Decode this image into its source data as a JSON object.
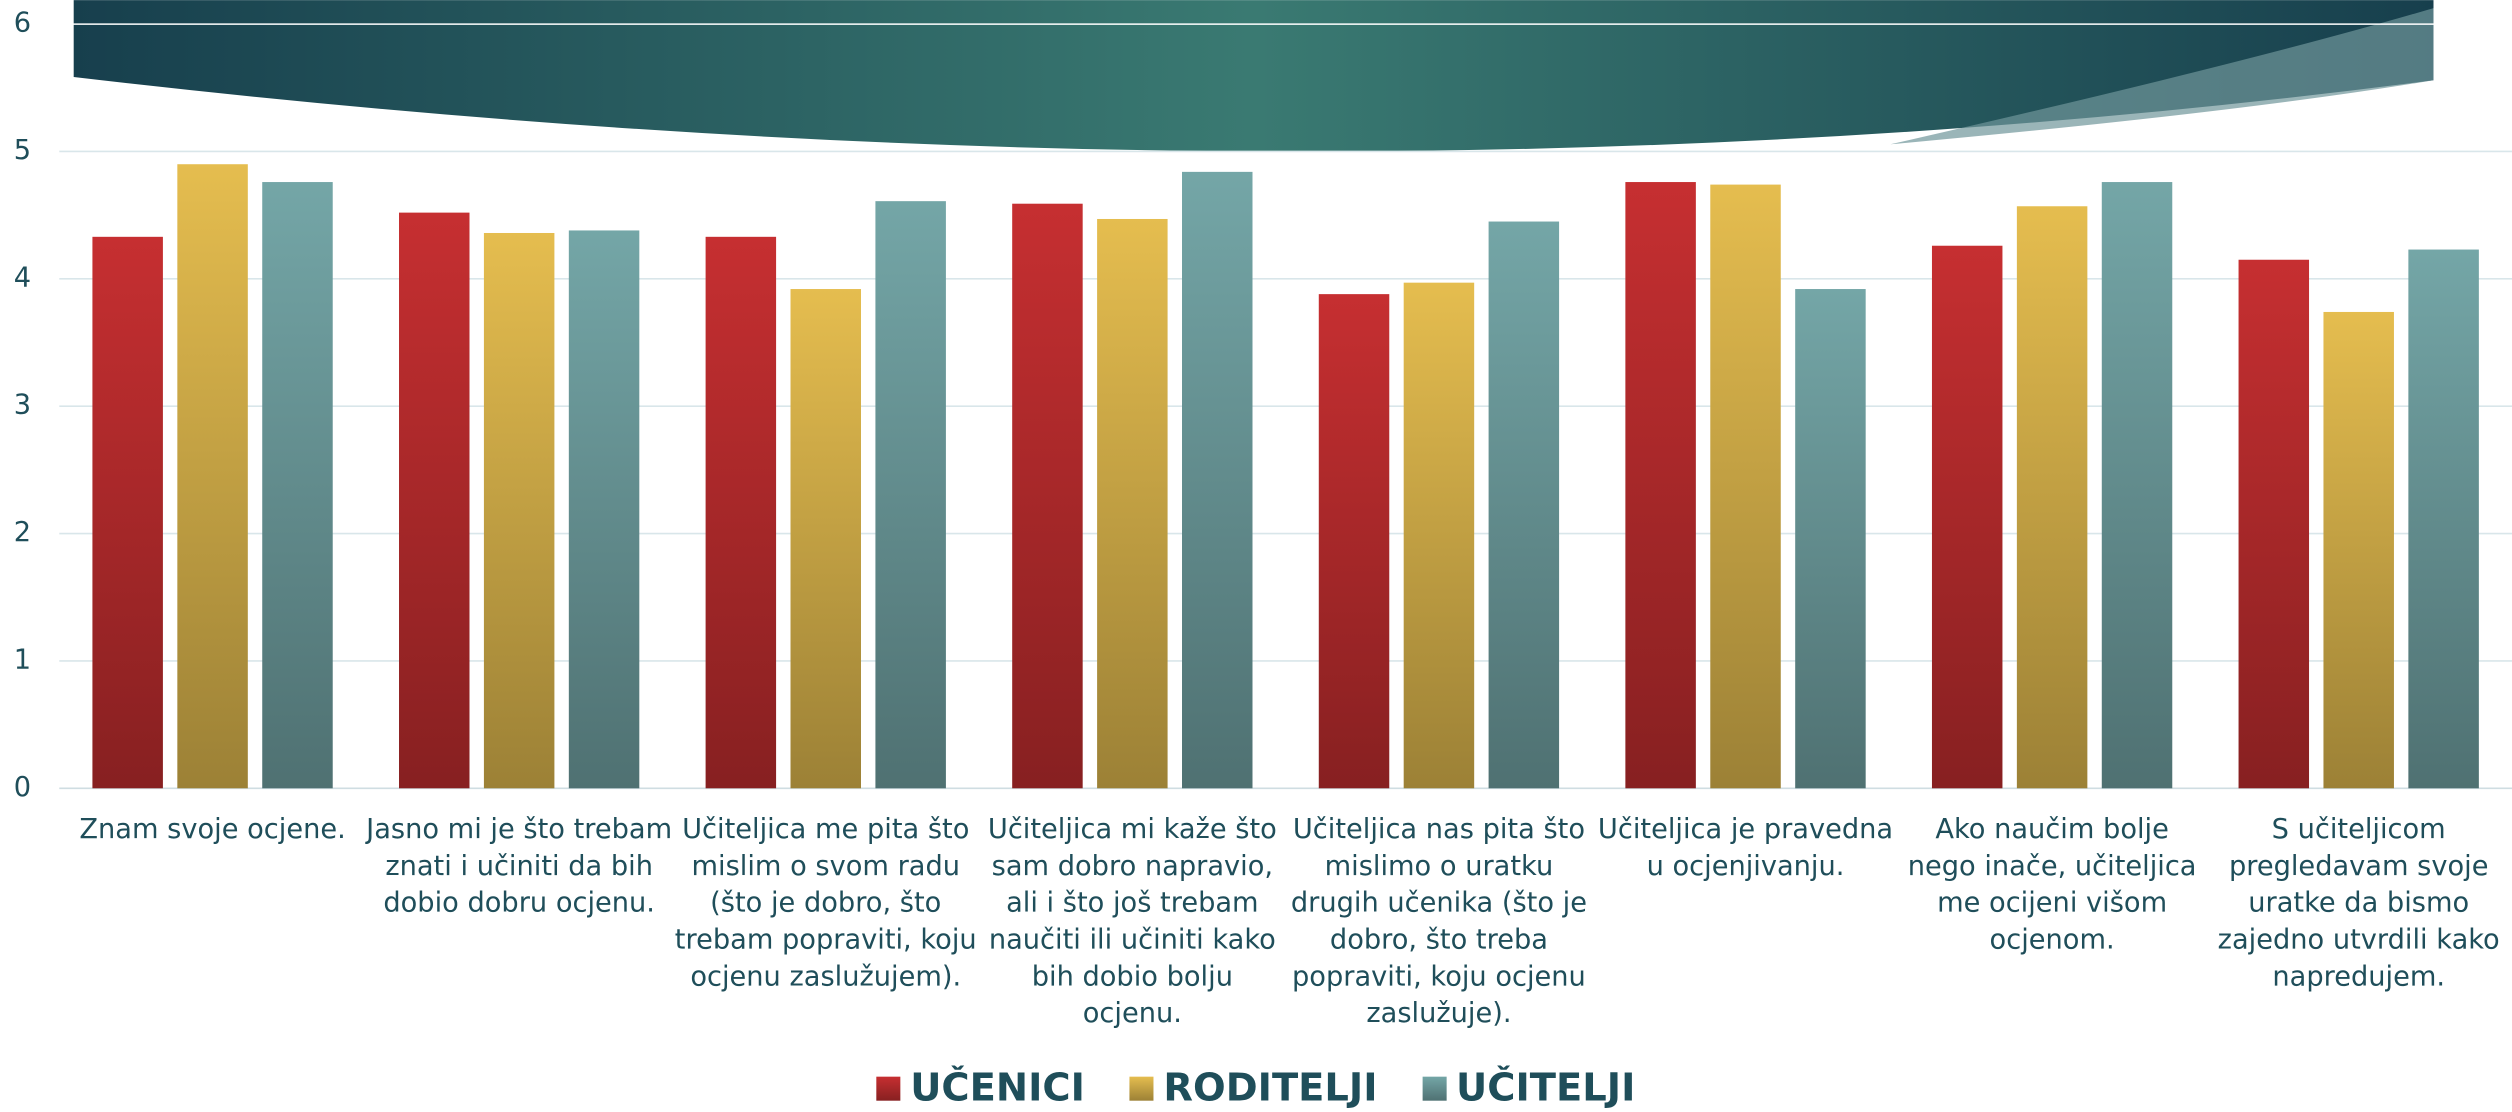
{
  "chart_data": {
    "type": "bar",
    "categories": [
      "Znam svoje ocjene.",
      "Jasno mi je što trebam znati i učiniti da bih dobio dobru ocjenu.",
      "Učiteljica me pita što mislim o svom radu (što je dobro, što trebam popraviti, koju ocjenu zaslužujem).",
      "Učiteljica mi kaže što sam dobro napravio, ali i što još trebam naučiti ili učiniti kako bih dobio bolju ocjenu.",
      "Učiteljica nas pita što mislimo o uratku drugih učenika (što je dobro, što treba popraviti, koju ocjenu zaslužuje).",
      "Učiteljica je pravedna u ocjenjivanju.",
      "Ako naučim bolje nego inače, učiteljica me ocijeni višom ocjenom.",
      "S učiteljicom pregledavam svoje uratke da bismo zajedno utvrdili kako napredujem."
    ],
    "series": [
      {
        "name": "UČENICI",
        "color": "#c62f31",
        "values": [
          4.33,
          4.52,
          4.33,
          4.59,
          3.88,
          4.76,
          4.26,
          4.15
        ]
      },
      {
        "name": "RODITELJI",
        "color": "#e5bd4f",
        "values": [
          4.9,
          4.36,
          3.92,
          4.47,
          3.97,
          4.74,
          4.57,
          3.74
        ]
      },
      {
        "name": "UČITELJI",
        "color": "#74a6a7",
        "values": [
          4.76,
          4.38,
          4.61,
          4.84,
          4.45,
          3.92,
          4.76,
          4.23
        ]
      }
    ],
    "ylim": [
      0,
      6
    ],
    "yticks": [
      0,
      1,
      2,
      3,
      4,
      5,
      6
    ],
    "grid": true,
    "legend": "bottom"
  }
}
